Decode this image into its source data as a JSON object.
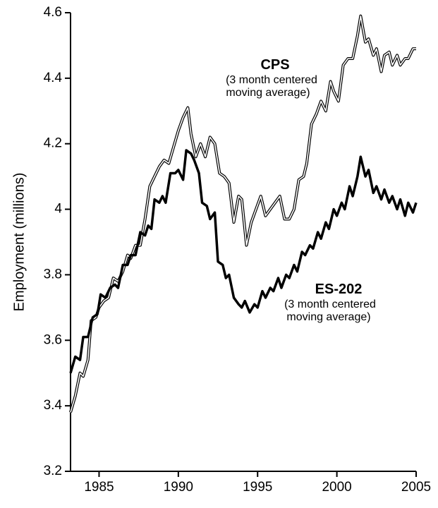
{
  "chart_data": {
    "type": "line",
    "y_label": "Employment (millions)",
    "xlim": [
      1983.2,
      2005
    ],
    "xticks": [
      1985,
      1990,
      1995,
      2000,
      2005
    ],
    "ylim": [
      3.2,
      4.6
    ],
    "yticks": [
      3.2,
      3.4,
      3.6,
      3.8,
      4.0,
      4.2,
      4.4,
      4.6
    ],
    "annotations": [
      {
        "title": "CPS",
        "lines": [
          "(3 month centered",
          "moving average)"
        ]
      },
      {
        "title": "ES-202",
        "lines": [
          "(3 month centered",
          "moving average)"
        ]
      }
    ],
    "series": [
      {
        "name": "CPS",
        "color": "#000000",
        "style": "double",
        "x": [
          1983.2,
          1983.5,
          1983.8,
          1984.0,
          1984.3,
          1984.5,
          1984.8,
          1985.0,
          1985.3,
          1985.6,
          1985.9,
          1986.2,
          1986.5,
          1986.8,
          1987.0,
          1987.3,
          1987.6,
          1987.9,
          1988.2,
          1988.5,
          1988.8,
          1989.1,
          1989.4,
          1989.7,
          1990.0,
          1990.3,
          1990.6,
          1990.8,
          1991.1,
          1991.4,
          1991.7,
          1992.0,
          1992.3,
          1992.6,
          1992.9,
          1993.2,
          1993.5,
          1993.8,
          1994.0,
          1994.3,
          1994.6,
          1994.9,
          1995.2,
          1995.5,
          1995.8,
          1996.1,
          1996.4,
          1996.7,
          1997.0,
          1997.3,
          1997.6,
          1997.9,
          1998.1,
          1998.4,
          1998.7,
          1999.0,
          1999.3,
          1999.6,
          1999.8,
          2000.1,
          2000.4,
          2000.7,
          2001.0,
          2001.3,
          2001.5,
          2001.8,
          2002.0,
          2002.3,
          2002.5,
          2002.8,
          2003.0,
          2003.3,
          2003.5,
          2003.8,
          2004.0,
          2004.3,
          2004.5,
          2004.8,
          2005.0
        ],
        "values": [
          3.38,
          3.43,
          3.5,
          3.49,
          3.54,
          3.66,
          3.67,
          3.7,
          3.72,
          3.73,
          3.79,
          3.78,
          3.81,
          3.86,
          3.85,
          3.89,
          3.89,
          3.97,
          4.07,
          4.1,
          4.13,
          4.15,
          4.14,
          4.19,
          4.24,
          4.28,
          4.31,
          4.23,
          4.16,
          4.2,
          4.16,
          4.22,
          4.2,
          4.11,
          4.1,
          4.08,
          3.96,
          4.04,
          4.03,
          3.89,
          3.96,
          4.0,
          4.04,
          3.98,
          4.0,
          4.02,
          4.04,
          3.97,
          3.97,
          4.0,
          4.09,
          4.1,
          4.14,
          4.26,
          4.29,
          4.33,
          4.3,
          4.39,
          4.36,
          4.33,
          4.44,
          4.46,
          4.46,
          4.53,
          4.59,
          4.51,
          4.52,
          4.47,
          4.49,
          4.42,
          4.47,
          4.48,
          4.44,
          4.47,
          4.44,
          4.46,
          4.46,
          4.49,
          4.49
        ]
      },
      {
        "name": "ES-202",
        "color": "#000000",
        "style": "thick",
        "x": [
          1983.2,
          1983.5,
          1983.8,
          1984.0,
          1984.3,
          1984.6,
          1984.9,
          1985.1,
          1985.4,
          1985.7,
          1986.0,
          1986.2,
          1986.5,
          1986.8,
          1987.0,
          1987.3,
          1987.6,
          1987.9,
          1988.1,
          1988.3,
          1988.5,
          1988.8,
          1989.0,
          1989.2,
          1989.5,
          1989.8,
          1990.0,
          1990.3,
          1990.5,
          1990.8,
          1991.0,
          1991.3,
          1991.5,
          1991.8,
          1992.0,
          1992.3,
          1992.5,
          1992.8,
          1993.0,
          1993.2,
          1993.5,
          1993.8,
          1994.0,
          1994.2,
          1994.5,
          1994.8,
          1995.0,
          1995.3,
          1995.5,
          1995.8,
          1996.0,
          1996.3,
          1996.5,
          1996.8,
          1997.0,
          1997.3,
          1997.5,
          1997.8,
          1998.0,
          1998.3,
          1998.5,
          1998.8,
          1999.0,
          1999.3,
          1999.5,
          1999.8,
          2000.0,
          2000.3,
          2000.5,
          2000.8,
          2001.0,
          2001.3,
          2001.5,
          2001.8,
          2002.0,
          2002.3,
          2002.5,
          2002.8,
          2003.0,
          2003.3,
          2003.5,
          2003.8,
          2004.0,
          2004.3,
          2004.5,
          2004.8,
          2005.0
        ],
        "values": [
          3.5,
          3.55,
          3.54,
          3.61,
          3.61,
          3.67,
          3.68,
          3.74,
          3.73,
          3.76,
          3.77,
          3.76,
          3.83,
          3.83,
          3.86,
          3.86,
          3.93,
          3.92,
          3.95,
          3.94,
          4.03,
          4.02,
          4.04,
          4.02,
          4.11,
          4.11,
          4.12,
          4.09,
          4.18,
          4.17,
          4.15,
          4.11,
          4.02,
          4.01,
          3.97,
          3.99,
          3.84,
          3.83,
          3.79,
          3.8,
          3.73,
          3.71,
          3.7,
          3.72,
          3.685,
          3.71,
          3.7,
          3.75,
          3.73,
          3.76,
          3.75,
          3.79,
          3.76,
          3.8,
          3.79,
          3.83,
          3.81,
          3.87,
          3.86,
          3.89,
          3.88,
          3.93,
          3.91,
          3.96,
          3.94,
          4.0,
          3.98,
          4.02,
          4.0,
          4.07,
          4.04,
          4.1,
          4.16,
          4.1,
          4.12,
          4.05,
          4.07,
          4.03,
          4.06,
          4.02,
          4.04,
          4.0,
          4.03,
          3.98,
          4.02,
          3.99,
          4.02
        ]
      }
    ]
  }
}
